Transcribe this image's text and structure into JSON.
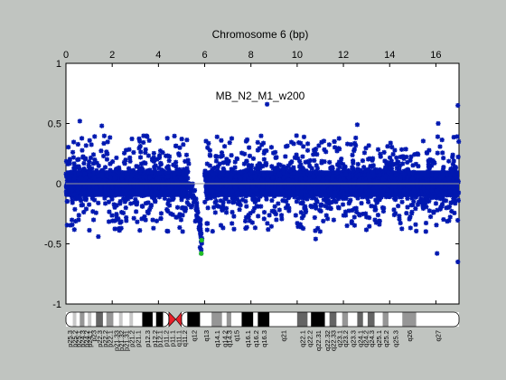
{
  "figure": {
    "background": "#c0c4c0",
    "plot_background": "#ffffff",
    "point_color": "#0018b0",
    "highlight_color": "#20c020",
    "baseline_color": "#9a9a9a"
  },
  "chart_data": {
    "type": "scatter",
    "title": "Chromosome 6 (bp)",
    "annotation": "MB_N2_M1_w200",
    "x_axis_position": "top",
    "xlim": [
      0,
      17
    ],
    "ylim": [
      -1,
      1
    ],
    "x_ticks": [
      0,
      2,
      4,
      6,
      8,
      10,
      12,
      14,
      16
    ],
    "y_ticks": [
      -1,
      -0.5,
      0,
      0.5,
      1
    ],
    "x_tick_labels": [
      "0",
      "2",
      "4",
      "6",
      "8",
      "10",
      "12",
      "14",
      "16"
    ],
    "y_tick_labels": [
      "-1",
      "-0.5",
      "0",
      "0.5",
      "1"
    ],
    "grid": false,
    "baseline_y": 0,
    "band": {
      "typical_half_width": 0.2,
      "typical_outlier_extent": 0.4
    },
    "notable_points": [
      {
        "x": 0.6,
        "y": 0.52
      },
      {
        "x": 1.55,
        "y": 0.48
      },
      {
        "x": 1.4,
        "y": -0.44
      },
      {
        "x": 5.8,
        "y": -0.53
      },
      {
        "x": 5.85,
        "y": -0.55
      },
      {
        "x": 5.85,
        "y": -0.58
      },
      {
        "x": 8.7,
        "y": 0.66
      },
      {
        "x": 10.8,
        "y": -0.46
      },
      {
        "x": 12.6,
        "y": 0.49
      },
      {
        "x": 16.1,
        "y": 0.5
      },
      {
        "x": 16.05,
        "y": -0.58
      },
      {
        "x": 16.95,
        "y": 0.65
      },
      {
        "x": 16.95,
        "y": -0.65
      }
    ],
    "dip": {
      "x_start": 5.3,
      "x_end": 5.9,
      "min_y": -0.58
    },
    "highlight_points": [
      {
        "x": 5.85,
        "y": -0.58
      },
      {
        "x": 5.87,
        "y": -0.47
      }
    ],
    "ideogram": {
      "bands": [
        {
          "name": "p25.3",
          "start": 0.0,
          "end": 0.3,
          "stain": "gneg"
        },
        {
          "name": "p25.2",
          "start": 0.3,
          "end": 0.45,
          "stain": "gpos25"
        },
        {
          "name": "p25.1",
          "start": 0.45,
          "end": 0.6,
          "stain": "gneg"
        },
        {
          "name": "p24.3",
          "start": 0.6,
          "end": 0.8,
          "stain": "gpos50"
        },
        {
          "name": "p24.2",
          "start": 0.8,
          "end": 0.95,
          "stain": "gneg"
        },
        {
          "name": "p24.1",
          "start": 0.95,
          "end": 1.1,
          "stain": "gpos25"
        },
        {
          "name": "p23",
          "start": 1.1,
          "end": 1.3,
          "stain": "gneg"
        },
        {
          "name": "p22.3",
          "start": 1.3,
          "end": 1.6,
          "stain": "gpos75"
        },
        {
          "name": "p22.2",
          "start": 1.6,
          "end": 1.75,
          "stain": "gneg"
        },
        {
          "name": "p22.1",
          "start": 1.75,
          "end": 2.05,
          "stain": "gpos50"
        },
        {
          "name": "p21.33",
          "start": 2.05,
          "end": 2.3,
          "stain": "gneg"
        },
        {
          "name": "p21.32",
          "start": 2.3,
          "end": 2.45,
          "stain": "gpos25"
        },
        {
          "name": "p21.31",
          "start": 2.45,
          "end": 2.75,
          "stain": "gneg"
        },
        {
          "name": "p21.2",
          "start": 2.75,
          "end": 2.9,
          "stain": "gpos25"
        },
        {
          "name": "p21.1",
          "start": 2.9,
          "end": 3.3,
          "stain": "gneg"
        },
        {
          "name": "p12.3",
          "start": 3.3,
          "end": 3.75,
          "stain": "gpos100"
        },
        {
          "name": "p12.2",
          "start": 3.75,
          "end": 3.9,
          "stain": "gneg"
        },
        {
          "name": "p12.1",
          "start": 3.9,
          "end": 4.2,
          "stain": "gpos100"
        },
        {
          "name": "p11.2",
          "start": 4.2,
          "end": 4.45,
          "stain": "gneg"
        },
        {
          "name": "p11.1",
          "start": 4.45,
          "end": 4.75,
          "stain": "acen"
        },
        {
          "name": "q11.1",
          "start": 4.75,
          "end": 5.0,
          "stain": "acen"
        },
        {
          "name": "q11.2",
          "start": 5.0,
          "end": 5.25,
          "stain": "gneg"
        },
        {
          "name": "q12",
          "start": 5.25,
          "end": 5.8,
          "stain": "gpos100"
        },
        {
          "name": "q13",
          "start": 5.8,
          "end": 6.3,
          "stain": "gneg"
        },
        {
          "name": "q14.1",
          "start": 6.3,
          "end": 6.75,
          "stain": "gpos50"
        },
        {
          "name": "q14.2",
          "start": 6.75,
          "end": 6.95,
          "stain": "gneg"
        },
        {
          "name": "q14.3",
          "start": 6.95,
          "end": 7.15,
          "stain": "gpos50"
        },
        {
          "name": "q15",
          "start": 7.15,
          "end": 7.6,
          "stain": "gneg"
        },
        {
          "name": "q16.1",
          "start": 7.6,
          "end": 8.1,
          "stain": "gpos100"
        },
        {
          "name": "q16.2",
          "start": 8.1,
          "end": 8.3,
          "stain": "gneg"
        },
        {
          "name": "q16.3",
          "start": 8.3,
          "end": 8.8,
          "stain": "gpos100"
        },
        {
          "name": "q21",
          "start": 8.8,
          "end": 10.0,
          "stain": "gneg"
        },
        {
          "name": "q22.1",
          "start": 10.0,
          "end": 10.45,
          "stain": "gpos75"
        },
        {
          "name": "q22.2",
          "start": 10.45,
          "end": 10.6,
          "stain": "gneg"
        },
        {
          "name": "q22.31",
          "start": 10.6,
          "end": 11.2,
          "stain": "gpos100"
        },
        {
          "name": "q22.32",
          "start": 11.2,
          "end": 11.4,
          "stain": "gneg"
        },
        {
          "name": "q22.33",
          "start": 11.4,
          "end": 11.7,
          "stain": "gpos75"
        },
        {
          "name": "q23.1",
          "start": 11.7,
          "end": 11.95,
          "stain": "gneg"
        },
        {
          "name": "q23.2",
          "start": 11.95,
          "end": 12.2,
          "stain": "gpos50"
        },
        {
          "name": "q23.3",
          "start": 12.2,
          "end": 12.6,
          "stain": "gneg"
        },
        {
          "name": "q24.1",
          "start": 12.6,
          "end": 12.85,
          "stain": "gpos75"
        },
        {
          "name": "q24.2",
          "start": 12.85,
          "end": 13.05,
          "stain": "gneg"
        },
        {
          "name": "q24.3",
          "start": 13.05,
          "end": 13.35,
          "stain": "gpos75"
        },
        {
          "name": "q25.1",
          "start": 13.35,
          "end": 13.7,
          "stain": "gneg"
        },
        {
          "name": "q25.2",
          "start": 13.7,
          "end": 13.95,
          "stain": "gpos50"
        },
        {
          "name": "q25.3",
          "start": 13.95,
          "end": 14.55,
          "stain": "gneg"
        },
        {
          "name": "q26",
          "start": 14.55,
          "end": 15.15,
          "stain": "gpos50"
        },
        {
          "name": "q27",
          "start": 15.15,
          "end": 17.0,
          "stain": "gneg"
        }
      ],
      "stain_colors": {
        "gneg": "#ffffff",
        "gpos25": "#c8c8c8",
        "gpos50": "#969696",
        "gpos75": "#646464",
        "gpos100": "#000000",
        "acen": "#e8202a"
      }
    }
  }
}
